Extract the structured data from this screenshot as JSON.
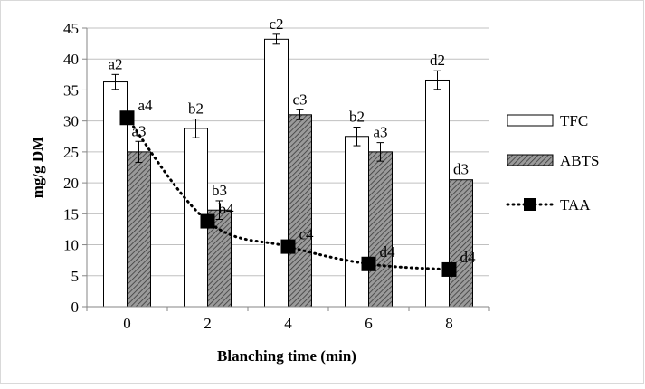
{
  "chart_data": {
    "type": "bar",
    "xlabel": "Blanching time (min)",
    "ylabel": "mg/g DM",
    "categories": [
      "0",
      "2",
      "4",
      "6",
      "8"
    ],
    "ylim": [
      0,
      45
    ],
    "yticks": [
      "0",
      "5",
      "10",
      "15",
      "20",
      "25",
      "30",
      "35",
      "40",
      "45"
    ],
    "grid": "horizontal",
    "legend_position": "right",
    "series": [
      {
        "name": "TFC",
        "kind": "bar",
        "style": "white",
        "values": [
          36.3,
          28.8,
          43.2,
          27.5,
          36.6
        ],
        "errors": [
          1.2,
          1.5,
          0.8,
          1.5,
          1.5
        ],
        "labels": [
          "a2",
          "b2",
          "c2",
          "b2",
          "d2"
        ]
      },
      {
        "name": "ABTS",
        "kind": "bar",
        "style": "hatched",
        "values": [
          25.0,
          15.6,
          31.0,
          25.0,
          20.5
        ],
        "errors": [
          1.7,
          1.5,
          0.8,
          1.5,
          0
        ],
        "labels": [
          "a3",
          "b3",
          "c3",
          "a3",
          "d3"
        ]
      },
      {
        "name": "TAA",
        "kind": "line",
        "style": "dotted-square",
        "values": [
          30.5,
          13.8,
          9.7,
          6.9,
          6.0
        ],
        "labels": [
          "a4",
          "b4",
          "c4",
          "d4",
          "d4"
        ]
      }
    ]
  },
  "colors": {
    "gridline": "#c0c0c0",
    "axis": "#868686",
    "bar_fill_tfc": "#ffffff",
    "bar_fill_abts": "#8c8c8c",
    "line_taa": "#000000"
  }
}
